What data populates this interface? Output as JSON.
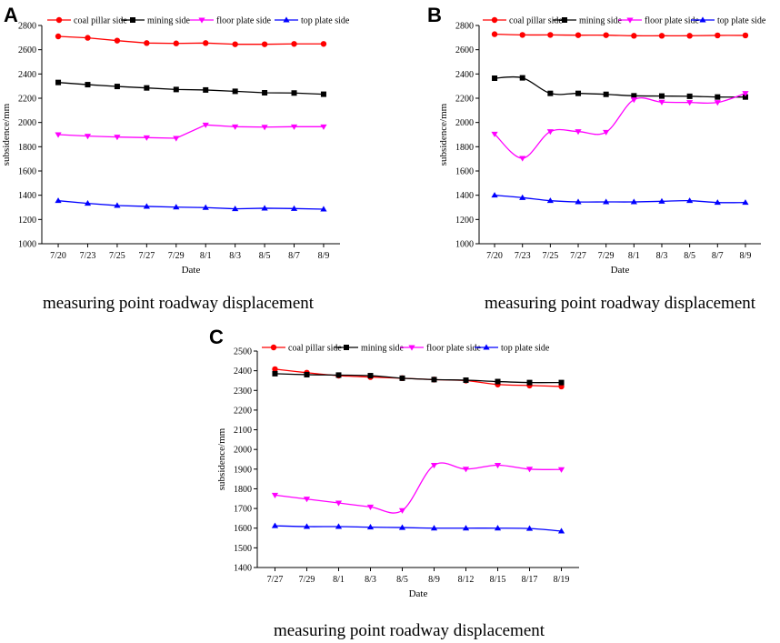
{
  "chart_data": [
    {
      "type": "line",
      "panel_label": "A",
      "title": "",
      "caption": "measuring point roadway displacement",
      "xlabel": "Date",
      "ylabel": "subsidence/mm",
      "ylim": [
        1000,
        2800
      ],
      "yticks": [
        1000,
        1200,
        1400,
        1600,
        1800,
        2000,
        2200,
        2400,
        2600,
        2800
      ],
      "categories": [
        "7/20",
        "7/23",
        "7/25",
        "7/27",
        "7/29",
        "8/1",
        "8/3",
        "8/5",
        "8/7",
        "8/9"
      ],
      "smooth": false,
      "legend_position": "top",
      "series": [
        {
          "name": "coal pillar side",
          "color": "#ff0000",
          "marker": "circle",
          "values": [
            2710,
            2698,
            2675,
            2655,
            2652,
            2655,
            2645,
            2645,
            2648,
            2648
          ]
        },
        {
          "name": "mining side",
          "color": "#000000",
          "marker": "square",
          "values": [
            2330,
            2312,
            2297,
            2285,
            2272,
            2268,
            2257,
            2245,
            2243,
            2233
          ]
        },
        {
          "name": "floor plate side",
          "color": "#ff00ff",
          "marker": "triangle-down",
          "values": [
            1900,
            1888,
            1880,
            1875,
            1870,
            1980,
            1965,
            1962,
            1965,
            1965
          ]
        },
        {
          "name": "top plate side",
          "color": "#0000ff",
          "marker": "triangle-up",
          "values": [
            1355,
            1333,
            1315,
            1308,
            1302,
            1298,
            1288,
            1293,
            1290,
            1285
          ]
        }
      ]
    },
    {
      "type": "line",
      "panel_label": "B",
      "title": "",
      "caption": "measuring point roadway displacement",
      "xlabel": "Date",
      "ylabel": "subsidence/mm",
      "ylim": [
        1000,
        2800
      ],
      "yticks": [
        1000,
        1200,
        1400,
        1600,
        1800,
        2000,
        2200,
        2400,
        2600,
        2800
      ],
      "categories": [
        "7/20",
        "7/23",
        "7/25",
        "7/27",
        "7/29",
        "8/1",
        "8/3",
        "8/5",
        "8/7",
        "8/9"
      ],
      "smooth": true,
      "legend_position": "top",
      "series": [
        {
          "name": "coal pillar side",
          "color": "#ff0000",
          "marker": "circle",
          "values": [
            2728,
            2722,
            2722,
            2720,
            2720,
            2715,
            2715,
            2715,
            2718,
            2718
          ]
        },
        {
          "name": "mining side",
          "color": "#000000",
          "marker": "square",
          "values": [
            2365,
            2368,
            2240,
            2240,
            2232,
            2220,
            2218,
            2216,
            2210,
            2210
          ]
        },
        {
          "name": "floor plate side",
          "color": "#ff00ff",
          "marker": "triangle-down",
          "values": [
            1905,
            1705,
            1925,
            1925,
            1920,
            2188,
            2168,
            2165,
            2165,
            2240
          ]
        },
        {
          "name": "top plate side",
          "color": "#0000ff",
          "marker": "triangle-up",
          "values": [
            1400,
            1380,
            1355,
            1345,
            1345,
            1345,
            1350,
            1355,
            1340,
            1340
          ]
        }
      ]
    },
    {
      "type": "line",
      "panel_label": "C",
      "title": "",
      "caption": "measuring point roadway displacement",
      "xlabel": "Date",
      "ylabel": "subsidence/mm",
      "ylim": [
        1400,
        2500
      ],
      "yticks": [
        1400,
        1500,
        1600,
        1700,
        1800,
        1900,
        2000,
        2100,
        2200,
        2300,
        2400,
        2500
      ],
      "categories": [
        "7/27",
        "7/29",
        "8/1",
        "8/3",
        "8/5",
        "8/9",
        "8/12",
        "8/15",
        "8/17",
        "8/19"
      ],
      "smooth": true,
      "legend_position": "top",
      "series": [
        {
          "name": "coal pillar side",
          "color": "#ff0000",
          "marker": "circle",
          "values": [
            2408,
            2390,
            2375,
            2368,
            2362,
            2355,
            2350,
            2330,
            2325,
            2320
          ]
        },
        {
          "name": "mining side",
          "color": "#000000",
          "marker": "square",
          "values": [
            2385,
            2380,
            2378,
            2375,
            2362,
            2355,
            2352,
            2345,
            2340,
            2340
          ]
        },
        {
          "name": "floor plate side",
          "color": "#ff00ff",
          "marker": "triangle-down",
          "values": [
            1768,
            1748,
            1728,
            1708,
            1690,
            1920,
            1900,
            1920,
            1900,
            1898
          ]
        },
        {
          "name": "top plate side",
          "color": "#0000ff",
          "marker": "triangle-up",
          "values": [
            1612,
            1608,
            1608,
            1605,
            1603,
            1600,
            1600,
            1600,
            1598,
            1585
          ]
        }
      ]
    }
  ]
}
